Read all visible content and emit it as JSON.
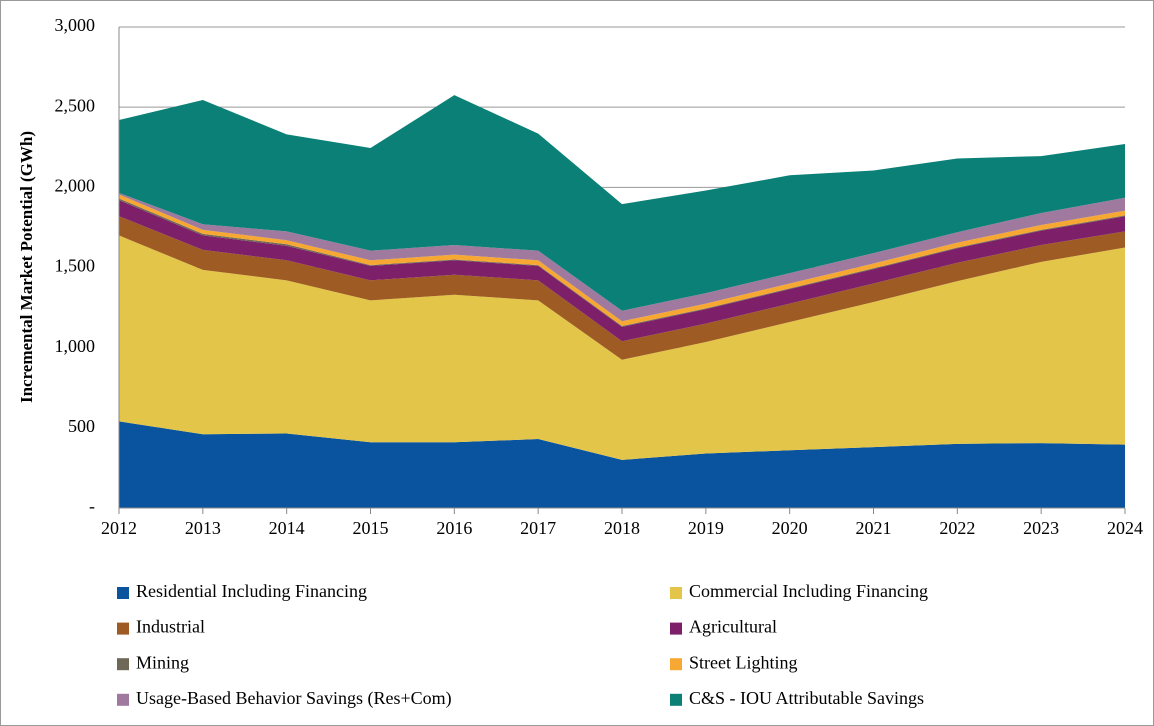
{
  "chart_data": {
    "type": "stacked-area",
    "y_label": "Incremental Market Potential (GWh)",
    "categories": [
      "2012",
      "2013",
      "2014",
      "2015",
      "2016",
      "2017",
      "2018",
      "2019",
      "2020",
      "2021",
      "2022",
      "2023",
      "2024"
    ],
    "ylim": [
      0,
      3000
    ],
    "yticks": [
      {
        "value": 0,
        "label": "-"
      },
      500,
      {
        "value": 1000,
        "label": "1,000"
      },
      {
        "value": 1500,
        "label": "1,500"
      },
      {
        "value": 2000,
        "label": "2,000"
      },
      {
        "value": 2500,
        "label": "2,500"
      },
      {
        "value": 3000,
        "label": "3,000"
      }
    ],
    "grid": true,
    "series": [
      {
        "name": "Residential Including Financing",
        "color": "#0a539e",
        "values": [
          540,
          460,
          465,
          410,
          410,
          430,
          300,
          340,
          360,
          380,
          400,
          405,
          395
        ]
      },
      {
        "name": "Commercial Including Financing",
        "color": "#e3c54a",
        "values": [
          1160,
          1025,
          955,
          885,
          920,
          865,
          625,
          695,
          800,
          905,
          1015,
          1130,
          1230
        ]
      },
      {
        "name": "Industrial",
        "color": "#9e5b23",
        "values": [
          120,
          125,
          125,
          125,
          125,
          125,
          115,
          115,
          115,
          115,
          115,
          105,
          100
        ]
      },
      {
        "name": "Agricultural",
        "color": "#7e1f6a",
        "values": [
          100,
          90,
          90,
          90,
          90,
          90,
          90,
          90,
          90,
          90,
          90,
          90,
          95
        ]
      },
      {
        "name": "Mining",
        "color": "#6e6858",
        "values": [
          10,
          10,
          10,
          5,
          5,
          5,
          5,
          5,
          5,
          5,
          5,
          5,
          5
        ]
      },
      {
        "name": "Street Lighting",
        "color": "#f7a833",
        "values": [
          25,
          25,
          25,
          30,
          30,
          30,
          30,
          30,
          30,
          30,
          30,
          30,
          30
        ]
      },
      {
        "name": "Usage-Based Behavior Savings (Res+Com)",
        "color": "#a07a9e",
        "values": [
          10,
          35,
          55,
          60,
          60,
          60,
          65,
          65,
          65,
          65,
          65,
          75,
          80
        ]
      },
      {
        "name": "C&S - IOU Attributable Savings",
        "color": "#0a8077",
        "values": [
          455,
          775,
          605,
          640,
          935,
          730,
          665,
          640,
          610,
          515,
          460,
          355,
          335
        ]
      }
    ]
  }
}
